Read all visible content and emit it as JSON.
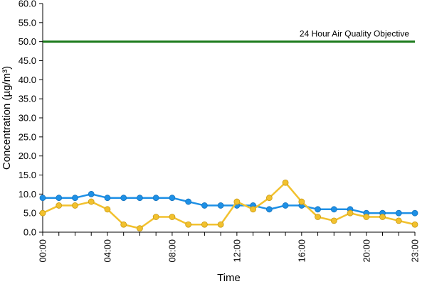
{
  "chart_data": {
    "type": "line",
    "title": "",
    "xlabel": "Time",
    "ylabel": "Concentration (µg/m³)",
    "ylim": [
      0,
      60
    ],
    "y_ticks": [
      "0.0",
      "5.0",
      "10.0",
      "15.0",
      "20.0",
      "25.0",
      "30.0",
      "35.0",
      "40.0",
      "45.0",
      "50.0",
      "55.0",
      "60.0"
    ],
    "y_tick_values": [
      0,
      5,
      10,
      15,
      20,
      25,
      30,
      35,
      40,
      45,
      50,
      55,
      60
    ],
    "x": [
      "00:00",
      "01:00",
      "02:00",
      "03:00",
      "04:00",
      "05:00",
      "06:00",
      "07:00",
      "08:00",
      "09:00",
      "10:00",
      "11:00",
      "12:00",
      "13:00",
      "14:00",
      "15:00",
      "16:00",
      "17:00",
      "18:00",
      "19:00",
      "20:00",
      "21:00",
      "22:00",
      "23:00"
    ],
    "x_tick_labels": [
      "00:00",
      "04:00",
      "08:00",
      "12:00",
      "16:00",
      "20:00",
      "23:00"
    ],
    "x_tick_hours": [
      0,
      4,
      8,
      12,
      16,
      20,
      23
    ],
    "series": [
      {
        "color": "#1e90e6",
        "values": [
          9,
          9,
          9,
          10,
          9,
          9,
          9,
          9,
          9,
          8,
          7,
          7,
          7,
          7,
          6,
          7,
          7,
          6,
          6,
          6,
          5,
          5,
          5,
          5
        ]
      },
      {
        "color": "#f2c12e",
        "values": [
          5,
          7,
          7,
          8,
          6,
          2,
          1,
          4,
          4,
          2,
          2,
          2,
          8,
          6,
          9,
          13,
          8,
          4,
          3,
          5,
          4,
          4,
          3,
          2
        ]
      }
    ],
    "reference_line": {
      "value": 50,
      "label": "24 Hour Air Quality Objective",
      "color": "#1a7a1a"
    },
    "grid": false,
    "legend": "none"
  }
}
